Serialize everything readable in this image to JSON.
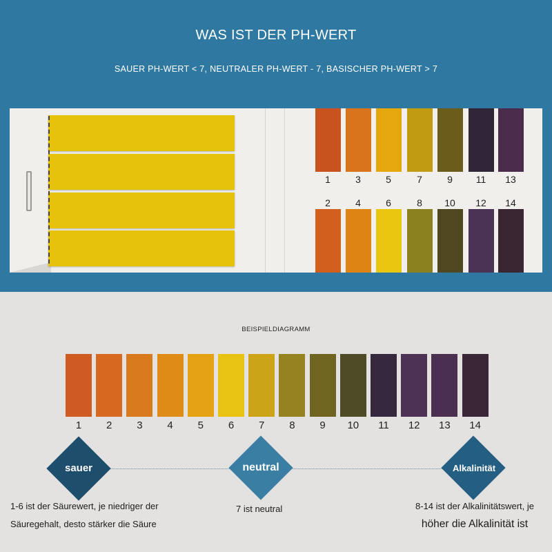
{
  "header": {
    "title": "WAS IST DER PH-WERT",
    "subtitle": "SAUER PH-WERT < 7, NEUTRALER PH-WERT - 7, BASISCHER PH-WERT > 7"
  },
  "card": {
    "strip_count": 4,
    "strip_color": "#e7c20a",
    "top_row": [
      {
        "label": "1",
        "color": "#c9531f"
      },
      {
        "label": "3",
        "color": "#d8741b"
      },
      {
        "label": "5",
        "color": "#e6a70d"
      },
      {
        "label": "7",
        "color": "#c19c12"
      },
      {
        "label": "9",
        "color": "#6a5d1b"
      },
      {
        "label": "11",
        "color": "#2f2536"
      },
      {
        "label": "13",
        "color": "#4a2d4d"
      }
    ],
    "bottom_row": [
      {
        "label": "2",
        "color": "#d1601c"
      },
      {
        "label": "4",
        "color": "#dd8415"
      },
      {
        "label": "6",
        "color": "#e9c60f"
      },
      {
        "label": "8",
        "color": "#8c811f"
      },
      {
        "label": "10",
        "color": "#4f4720"
      },
      {
        "label": "12",
        "color": "#4a3354"
      },
      {
        "label": "14",
        "color": "#3a2533"
      }
    ]
  },
  "example": {
    "title": "BEISPIELDIAGRAMM",
    "swatches": [
      {
        "label": "1",
        "color": "#cf5a22"
      },
      {
        "label": "2",
        "color": "#d7681f"
      },
      {
        "label": "3",
        "color": "#d97b1c"
      },
      {
        "label": "4",
        "color": "#df8b17"
      },
      {
        "label": "5",
        "color": "#e5a212"
      },
      {
        "label": "6",
        "color": "#e8c313"
      },
      {
        "label": "7",
        "color": "#cca418"
      },
      {
        "label": "8",
        "color": "#958322"
      },
      {
        "label": "9",
        "color": "#6f6520"
      },
      {
        "label": "10",
        "color": "#4e4b26"
      },
      {
        "label": "11",
        "color": "#35283f"
      },
      {
        "label": "12",
        "color": "#4d3256"
      },
      {
        "label": "13",
        "color": "#4b2f50"
      },
      {
        "label": "14",
        "color": "#3b2637"
      }
    ]
  },
  "scale": {
    "acid": {
      "label": "sauer",
      "color": "#1f4d6c",
      "desc_lines": [
        "1-6 ist der Säurewert, je niedriger der",
        "Säuregehalt, desto stärker die Säure"
      ]
    },
    "neutral": {
      "label": "neutral",
      "color": "#3a7ea3",
      "desc_lines": [
        "7 ist neutral"
      ]
    },
    "alkaline": {
      "label": "Alkalinität",
      "color": "#245f83",
      "desc_lines": [
        "8-14 ist der Alkalinitätswert, je",
        "höher die Alkalinität ist"
      ]
    }
  }
}
